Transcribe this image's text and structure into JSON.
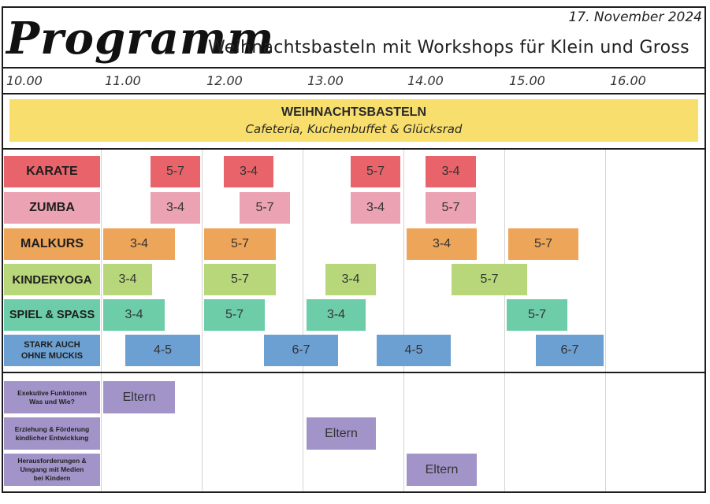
{
  "header": {
    "date": "17. November 2024",
    "program_word": "Programm",
    "subtitle": "Weihnachtsbasteln mit Workshops für Klein und Gross"
  },
  "timeline": [
    "10.00",
    "11.00",
    "12.00",
    "13.00",
    "14.00",
    "15.00",
    "16.00"
  ],
  "banner": {
    "title": "WEIHNACHTSBASTELN",
    "subtitle": "Cafeteria, Kuchenbuffet & Glücksrad",
    "color": "#f8de6c"
  },
  "colors": {
    "karate": "#e8636a",
    "zumba": "#eba2b3",
    "malkurs": "#eda55a",
    "kinderyoga": "#b8d77a",
    "spiel": "#6ccda8",
    "stark": "#6c9fd2",
    "eltern": "#a294c9"
  },
  "rows": [
    {
      "label": "KARATE",
      "slots": [
        "5-7",
        "3-4",
        "5-7",
        "3-4"
      ]
    },
    {
      "label": "ZUMBA",
      "slots": [
        "3-4",
        "5-7",
        "3-4",
        "5-7"
      ]
    },
    {
      "label": "MALKURS",
      "slots": [
        "3-4",
        "5-7",
        "3-4",
        "5-7"
      ]
    },
    {
      "label": "KINDERYOGA",
      "slots": [
        "3-4",
        "5-7",
        "3-4",
        "5-7"
      ]
    },
    {
      "label": "SPIEL & SPASS",
      "slots": [
        "3-4",
        "5-7",
        "3-4",
        "5-7"
      ]
    },
    {
      "label_line1": "STARK AUCH",
      "label_line2": "OHNE MUCKIS",
      "slots": [
        "4-5",
        "6-7",
        "4-5",
        "6-7"
      ]
    }
  ],
  "parents": [
    {
      "line1": "Exekutive Funktionen",
      "line2": "Was und Wie?",
      "line3": "",
      "slot": "Eltern"
    },
    {
      "line1": "Erziehung & Förderung",
      "line2": "kindlicher Entwicklung",
      "line3": "",
      "slot": "Eltern"
    },
    {
      "line1": "Herausforderungen &",
      "line2": "Umgang mit Medien",
      "line3": "bei Kindern",
      "slot": "Eltern"
    }
  ]
}
